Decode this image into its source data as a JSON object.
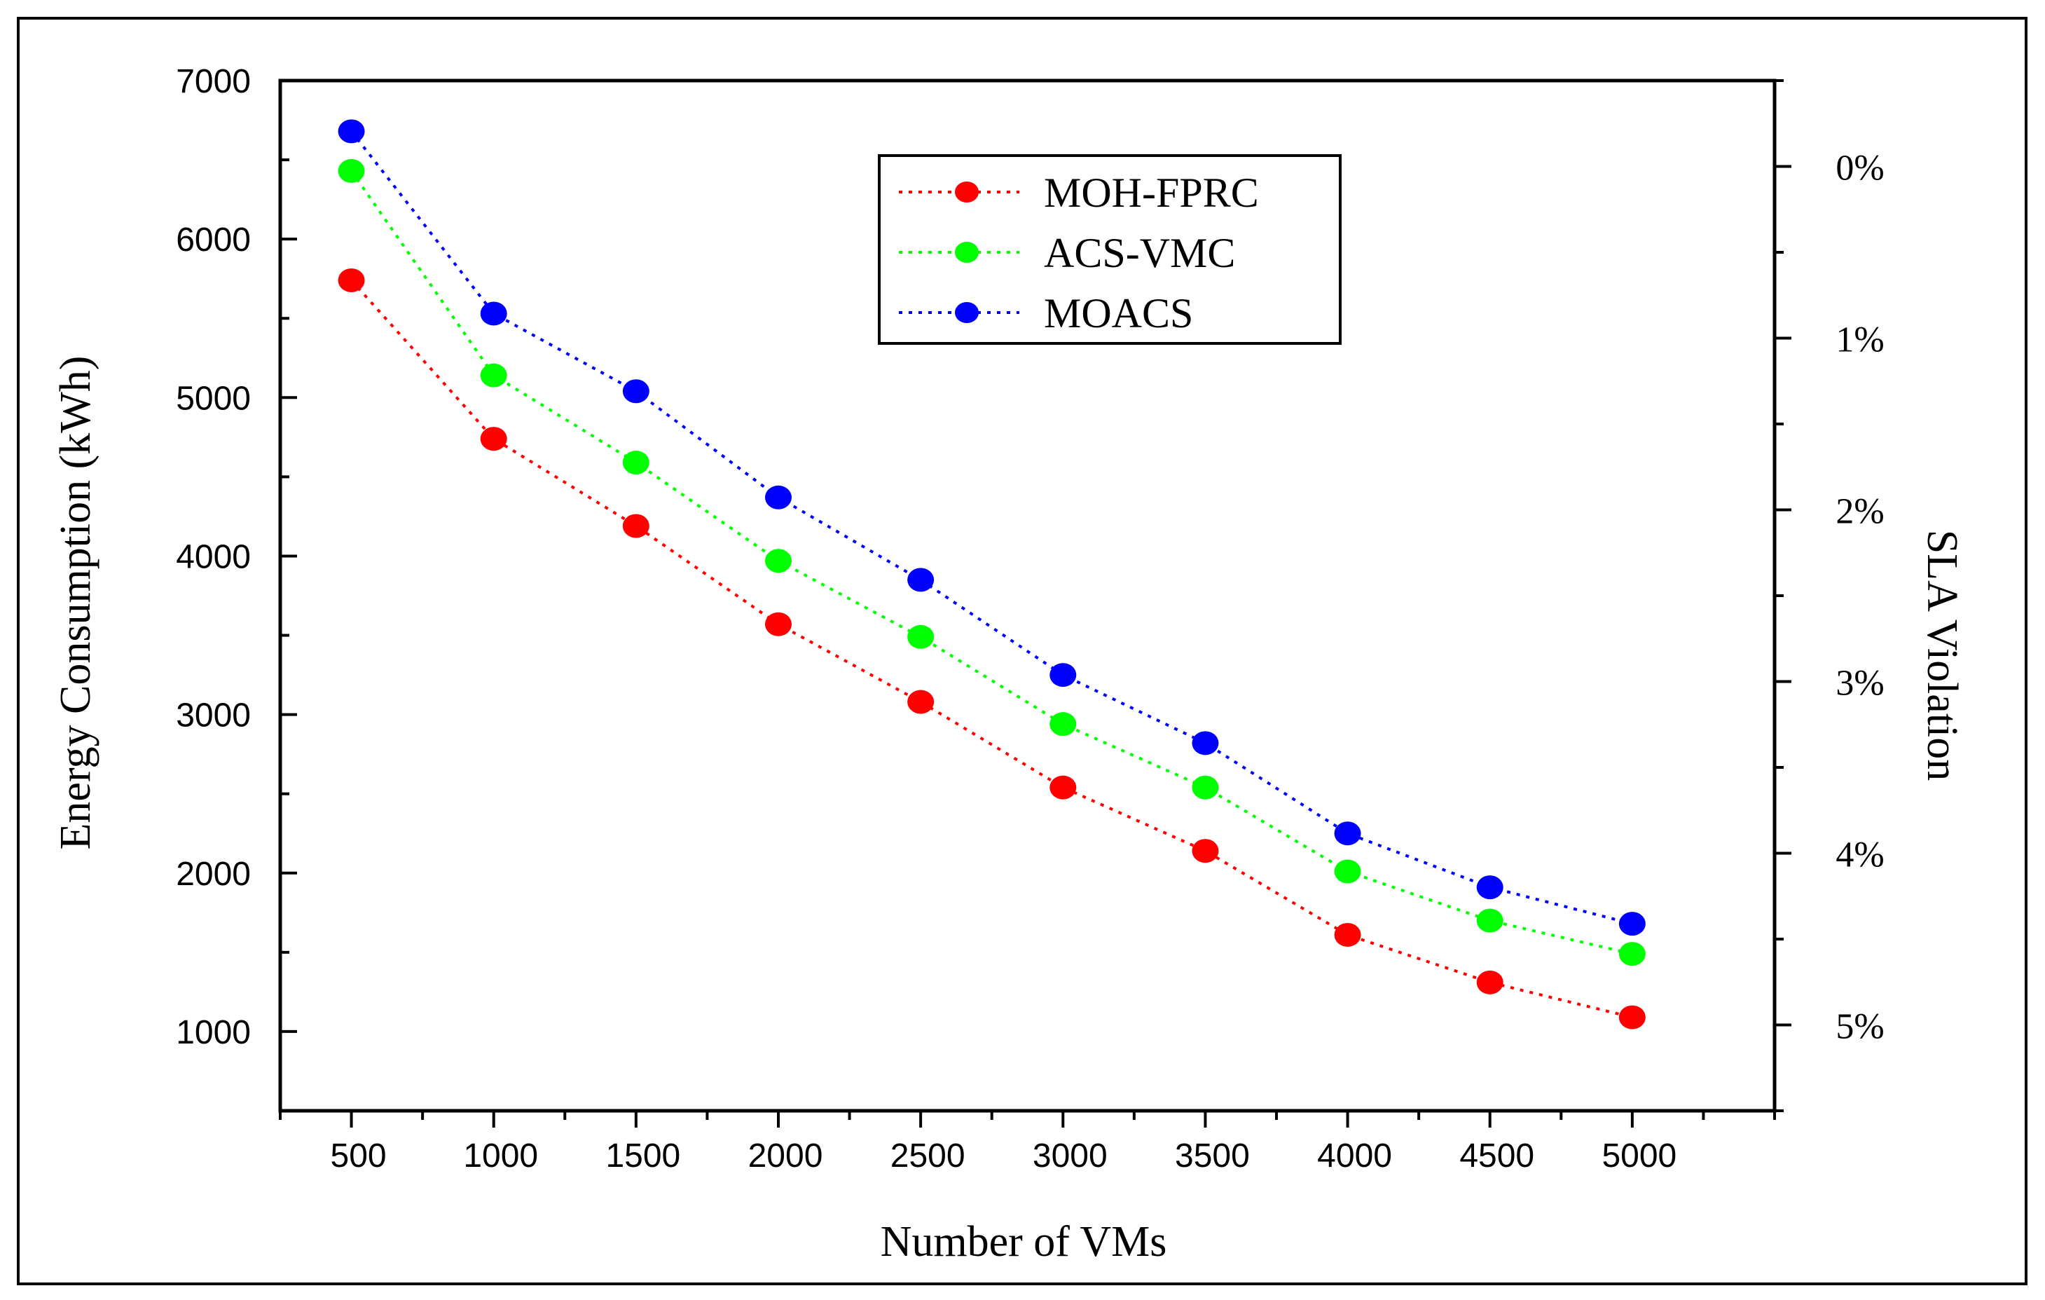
{
  "chart_data": {
    "type": "line",
    "title": "",
    "xlabel": "Number of VMs",
    "ylabel": "Energy Consumption (kWh)",
    "y2label": "SLA Violation",
    "x": [
      500,
      1000,
      1500,
      2000,
      2500,
      3000,
      3500,
      4000,
      4500,
      5000
    ],
    "x_tick_labels": [
      "500",
      "1000",
      "1500",
      "2000",
      "2500",
      "3000",
      "3500",
      "4000",
      "4500",
      "5000"
    ],
    "xlim": [
      250,
      5500
    ],
    "ylim": [
      500,
      7000
    ],
    "y_ticks": [
      1000,
      2000,
      3000,
      4000,
      5000,
      6000,
      7000
    ],
    "y_tick_labels": [
      "1000",
      "2000",
      "3000",
      "4000",
      "5000",
      "6000",
      "7000"
    ],
    "y2lim": [
      -0.5,
      5.5
    ],
    "y2_ticks": [
      0,
      1,
      2,
      3,
      4,
      5
    ],
    "y2_tick_labels": [
      "0%",
      "1%",
      "2%",
      "3%",
      "4%",
      "5%"
    ],
    "y2_inverted": true,
    "grid": false,
    "legend_position": "top-center",
    "series": [
      {
        "name": "MOH-FPRC",
        "color": "#ff0000",
        "line_style": "dotted",
        "marker": "circle",
        "values": [
          5740,
          4740,
          4190,
          3570,
          3080,
          2540,
          2140,
          1610,
          1310,
          1090
        ]
      },
      {
        "name": "ACS-VMC",
        "color": "#00ff00",
        "line_style": "dotted",
        "marker": "circle",
        "values": [
          6430,
          5140,
          4590,
          3970,
          3490,
          2940,
          2540,
          2010,
          1700,
          1490
        ]
      },
      {
        "name": "MOACS",
        "color": "#0000ff",
        "line_style": "dotted",
        "marker": "circle",
        "values": [
          6680,
          5530,
          5040,
          4370,
          3850,
          3250,
          2820,
          2250,
          1910,
          1680
        ]
      }
    ]
  }
}
